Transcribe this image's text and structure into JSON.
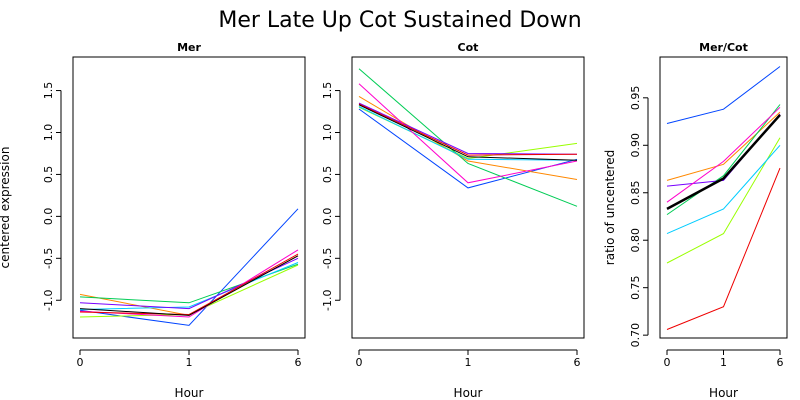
{
  "figure": {
    "title": "Mer Late Up Cot Sustained Down"
  },
  "chart_data": [
    {
      "type": "line",
      "panel_title": "Mer",
      "xlabel": "Hour",
      "ylabel": "centered expression",
      "categories": [
        "0",
        "1",
        "6"
      ],
      "ylim": [
        -1.45,
        1.9
      ],
      "yticks": [
        -1.0,
        -0.5,
        0.0,
        0.5,
        1.0,
        1.5
      ],
      "ytick_labels": [
        "-1.0",
        "-0.5",
        "0.0",
        "0.5",
        "1.0",
        "1.5"
      ],
      "series": [
        {
          "color": "#0044ff",
          "values": [
            -1.12,
            -1.3,
            0.09
          ]
        },
        {
          "color": "#ff8800",
          "values": [
            -0.93,
            -1.18,
            -0.47
          ]
        },
        {
          "color": "#99ff00",
          "values": [
            -1.2,
            -1.17,
            -0.58
          ]
        },
        {
          "color": "#00cc55",
          "values": [
            -0.96,
            -1.03,
            -0.57
          ]
        },
        {
          "color": "#00ccff",
          "values": [
            -1.11,
            -1.08,
            -0.55
          ]
        },
        {
          "color": "#7700ff",
          "values": [
            -1.03,
            -1.1,
            -0.5
          ]
        },
        {
          "color": "#ff00cc",
          "values": [
            -1.13,
            -1.2,
            -0.4
          ]
        },
        {
          "color": "#ee0000",
          "values": [
            -1.14,
            -1.17,
            -0.45
          ]
        },
        {
          "color": "#000000",
          "values": [
            -1.1,
            -1.18,
            -0.47
          ]
        }
      ]
    },
    {
      "type": "line",
      "panel_title": "Cot",
      "xlabel": "Hour",
      "ylabel": "",
      "categories": [
        "0",
        "1",
        "6"
      ],
      "ylim": [
        -1.45,
        1.9
      ],
      "yticks": [
        -1.0,
        -0.5,
        0.0,
        0.5,
        1.0,
        1.5
      ],
      "ytick_labels": [
        "-1.0",
        "-0.5",
        "0.0",
        "0.5",
        "1.0",
        "1.5"
      ],
      "series": [
        {
          "color": "#0044ff",
          "values": [
            1.28,
            0.34,
            0.68
          ]
        },
        {
          "color": "#ff8800",
          "values": [
            1.43,
            0.66,
            0.44
          ]
        },
        {
          "color": "#99ff00",
          "values": [
            1.3,
            0.69,
            0.87
          ]
        },
        {
          "color": "#00cc55",
          "values": [
            1.76,
            0.63,
            0.12
          ]
        },
        {
          "color": "#00ccff",
          "values": [
            1.31,
            0.68,
            0.67
          ]
        },
        {
          "color": "#7700ff",
          "values": [
            1.35,
            0.75,
            0.74
          ]
        },
        {
          "color": "#ff00cc",
          "values": [
            1.58,
            0.4,
            0.66
          ]
        },
        {
          "color": "#ee0000",
          "values": [
            1.34,
            0.73,
            0.74
          ]
        },
        {
          "color": "#000000",
          "values": [
            1.33,
            0.71,
            0.67
          ]
        }
      ]
    },
    {
      "type": "line",
      "panel_title": "Mer/Cot",
      "xlabel": "Hour",
      "ylabel": "ratio of uncentered",
      "categories": [
        "0",
        "1",
        "6"
      ],
      "ylim": [
        0.697,
        0.993
      ],
      "yticks": [
        0.7,
        0.75,
        0.8,
        0.85,
        0.9,
        0.95
      ],
      "ytick_labels": [
        "0.70",
        "0.75",
        "0.80",
        "0.85",
        "0.90",
        "0.95"
      ],
      "series": [
        {
          "color": "#0044ff",
          "values": [
            0.923,
            0.938,
            0.983
          ],
          "bold": false
        },
        {
          "color": "#ff8800",
          "values": [
            0.863,
            0.88,
            0.935
          ],
          "bold": false
        },
        {
          "color": "#99ff00",
          "values": [
            0.776,
            0.807,
            0.908
          ],
          "bold": false
        },
        {
          "color": "#00cc55",
          "values": [
            0.827,
            0.868,
            0.943
          ],
          "bold": false
        },
        {
          "color": "#00ccff",
          "values": [
            0.807,
            0.833,
            0.9
          ],
          "bold": false
        },
        {
          "color": "#7700ff",
          "values": [
            0.857,
            0.863,
            0.933
          ],
          "bold": false
        },
        {
          "color": "#ff00cc",
          "values": [
            0.84,
            0.883,
            0.94
          ],
          "bold": false
        },
        {
          "color": "#ee0000",
          "values": [
            0.706,
            0.73,
            0.876
          ],
          "bold": false
        },
        {
          "color": "#000000",
          "values": [
            0.833,
            0.865,
            0.932
          ],
          "bold": true
        }
      ]
    }
  ]
}
